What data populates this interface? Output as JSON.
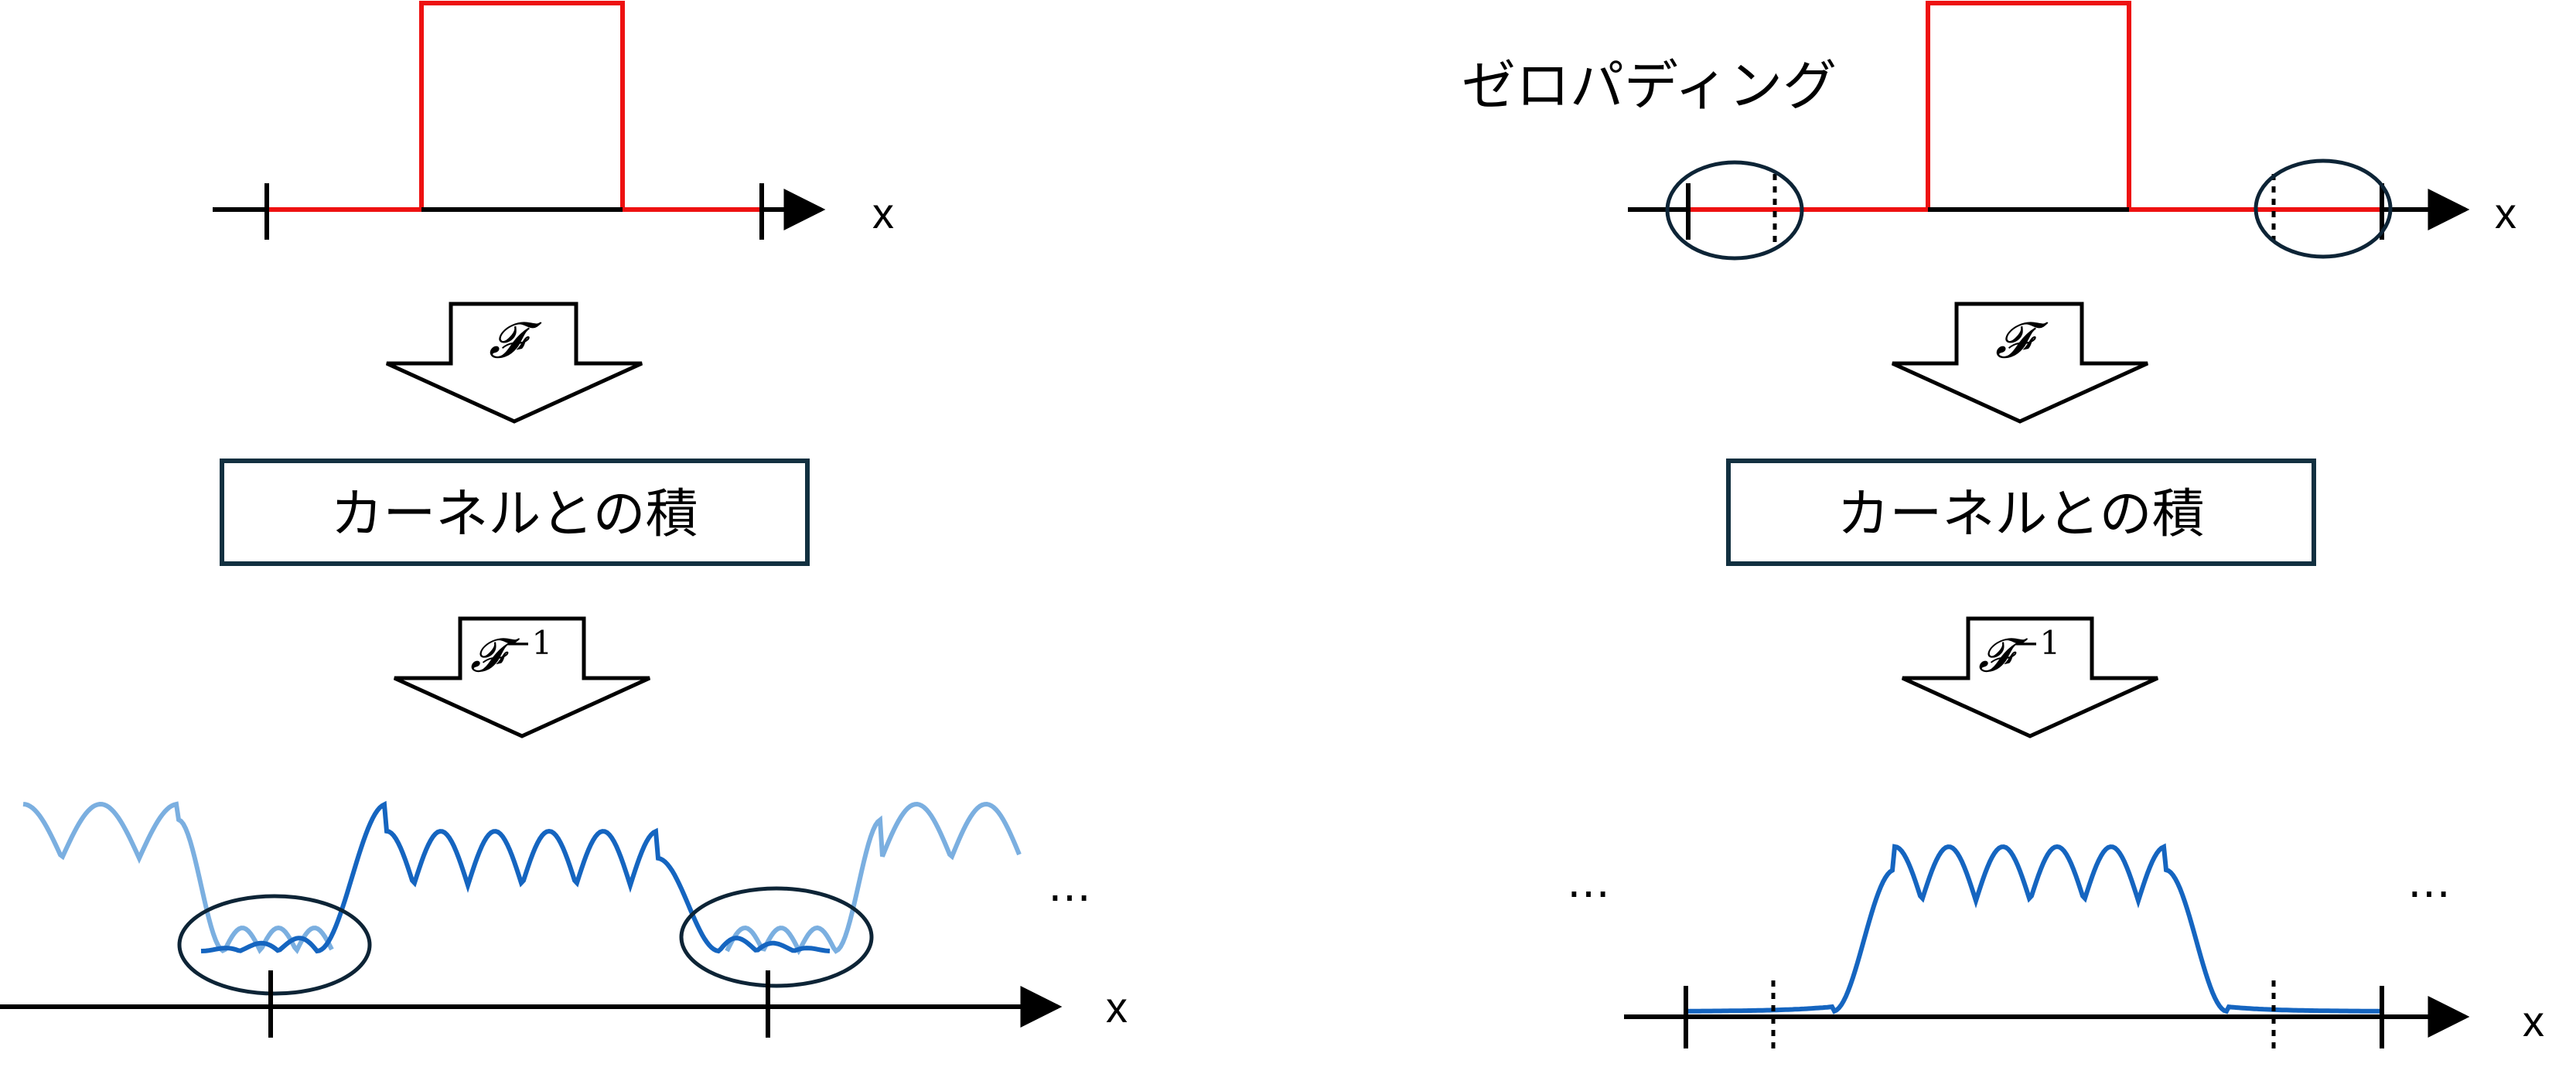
{
  "left": {
    "axis_top_label": "x",
    "fourier_label": "𝓕",
    "kernel_box_label": "カーネルとの積",
    "inverse_label_base": "𝓕",
    "inverse_label_exp": "−1",
    "axis_bottom_label": "x",
    "ellipsis": "…"
  },
  "right": {
    "zero_padding_label": "ゼロパディング",
    "axis_top_label": "x",
    "fourier_label": "𝓕",
    "kernel_box_label": "カーネルとの積",
    "inverse_label_base": "𝓕",
    "inverse_label_exp": "−1",
    "axis_bottom_label": "x",
    "ellipsis_left": "…",
    "ellipsis_right": "…"
  },
  "colors": {
    "signal_red": "#ee1111",
    "axis_black": "#000000",
    "wave_dark": "#1565c0",
    "wave_light": "#7bafe0",
    "ellipse_stroke": "#0d2436",
    "box_stroke": "#123040"
  }
}
